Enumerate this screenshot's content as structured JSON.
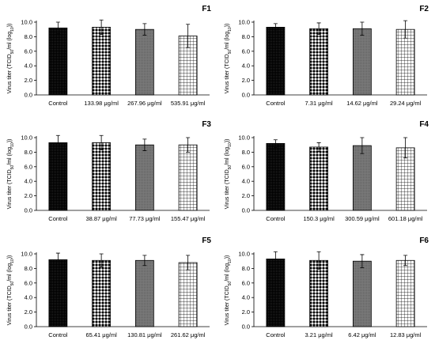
{
  "colors": {
    "axis": "#000000",
    "bar_stroke": "#000000",
    "grid_bg": "#ffffff"
  },
  "chart_data": [
    {
      "type": "bar",
      "panel_label": "F1",
      "ylabel": "Virus titer (TCID50/ml (log10))",
      "ylim": [
        0,
        10
      ],
      "yticks": [
        "0.0",
        "2.0",
        "4.0",
        "6.0",
        "8.0",
        "10.0"
      ],
      "categories": [
        "Control",
        "133.98 μg/ml",
        "267.96 μg/ml",
        "535.91 μg/ml"
      ],
      "values": [
        9.2,
        9.3,
        9.0,
        8.1
      ],
      "errors": [
        0.8,
        1.0,
        0.8,
        1.6
      ],
      "patterns": [
        "dense-dots",
        "diamond-check",
        "dark-gray",
        "grid"
      ]
    },
    {
      "type": "bar",
      "panel_label": "F2",
      "ylabel": "Virus titer (TCID50/ml (log10))",
      "ylim": [
        0,
        10
      ],
      "yticks": [
        "0.0",
        "2.0",
        "4.0",
        "6.0",
        "8.0",
        "10.0"
      ],
      "categories": [
        "Control",
        "7.31 μg/ml",
        "14.62 μg/ml",
        "29.24 μg/ml"
      ],
      "values": [
        9.3,
        9.1,
        9.1,
        9.0
      ],
      "errors": [
        0.5,
        0.8,
        0.9,
        1.2
      ],
      "patterns": [
        "dense-dots",
        "diamond-check",
        "dark-gray",
        "grid"
      ]
    },
    {
      "type": "bar",
      "panel_label": "F3",
      "ylabel": "Virus titer (TCID50/ml (log10))",
      "ylim": [
        0,
        10
      ],
      "yticks": [
        "0.0",
        "2.0",
        "4.0",
        "6.0",
        "8.0",
        "10.0"
      ],
      "categories": [
        "Control",
        "38.87 μg/ml",
        "77.73 μg/ml",
        "155.47 μg/ml"
      ],
      "values": [
        9.3,
        9.3,
        9.0,
        9.0
      ],
      "errors": [
        1.0,
        1.0,
        0.8,
        1.0
      ],
      "patterns": [
        "dense-dots",
        "diamond-check",
        "dark-gray",
        "grid"
      ]
    },
    {
      "type": "bar",
      "panel_label": "F4",
      "ylabel": "Virus titer (TCID50/ml (log10))",
      "ylim": [
        0,
        10
      ],
      "yticks": [
        "0.0",
        "2.0",
        "4.0",
        "6.0",
        "8.0",
        "10.0"
      ],
      "categories": [
        "Control",
        "150.3 μg/ml",
        "300.59 μg/ml",
        "601.18 μg/ml"
      ],
      "values": [
        9.2,
        8.7,
        8.9,
        8.6
      ],
      "errors": [
        0.5,
        0.6,
        1.1,
        1.4
      ],
      "patterns": [
        "dense-dots",
        "diamond-check",
        "dark-gray",
        "grid"
      ]
    },
    {
      "type": "bar",
      "panel_label": "F5",
      "ylabel": "Virus titer (TCID50/ml (log10))",
      "ylim": [
        0,
        10
      ],
      "yticks": [
        "0.0",
        "2.0",
        "4.0",
        "6.0",
        "8.0",
        "10.0"
      ],
      "categories": [
        "Control",
        "65.41 μg/ml",
        "130.81 μg/ml",
        "261.62 μg/ml"
      ],
      "values": [
        9.2,
        9.1,
        9.1,
        8.8
      ],
      "errors": [
        0.9,
        0.9,
        0.7,
        1.0
      ],
      "patterns": [
        "dense-dots",
        "diamond-check",
        "dark-gray",
        "grid"
      ]
    },
    {
      "type": "bar",
      "panel_label": "F6",
      "ylabel": "Virus titer (TCID50/ml (log10))",
      "ylim": [
        0,
        10
      ],
      "yticks": [
        "0.0",
        "2.0",
        "4.0",
        "6.0",
        "8.0",
        "10.0"
      ],
      "categories": [
        "Control",
        "3.21 μg/ml",
        "6.42 μg/ml",
        "12.83 μg/ml"
      ],
      "values": [
        9.3,
        9.1,
        9.0,
        9.1
      ],
      "errors": [
        1.0,
        1.2,
        0.9,
        0.7
      ],
      "patterns": [
        "dense-dots",
        "diamond-check",
        "dark-gray",
        "grid"
      ]
    }
  ]
}
